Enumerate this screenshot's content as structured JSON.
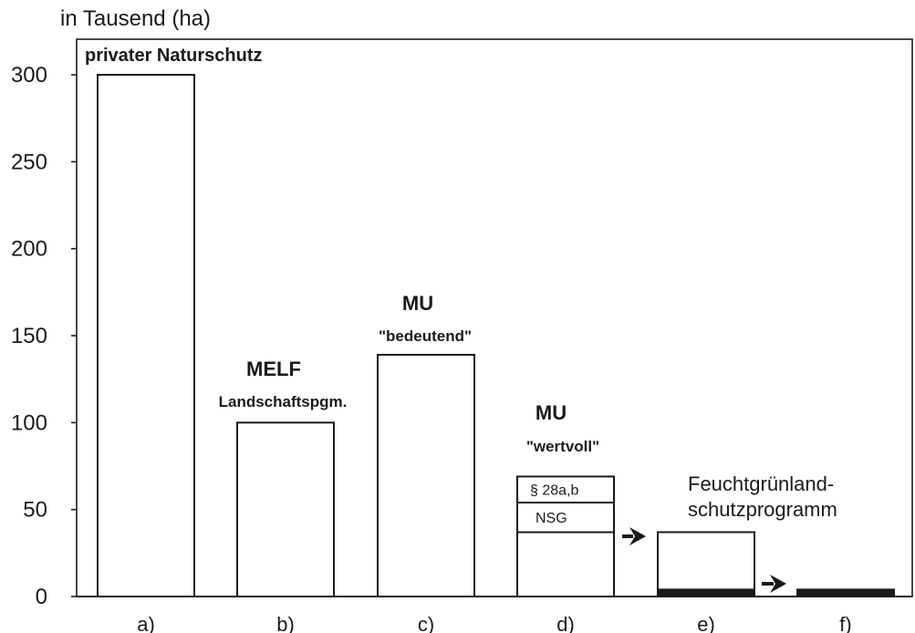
{
  "chart_data": {
    "type": "bar",
    "title": "in Tausend (ha)",
    "ylim": [
      0,
      300
    ],
    "yticks": [
      "0",
      "50",
      "100",
      "150",
      "200",
      "250",
      "300"
    ],
    "categories": [
      "a)",
      "b)",
      "c)",
      "d)",
      "e)",
      "f)"
    ],
    "values": [
      300,
      100,
      139,
      69,
      37,
      4
    ],
    "bar_labels": [
      [
        "privater Naturschutz"
      ],
      [
        "MELF",
        "Landschaftspgm."
      ],
      [
        "MU",
        "\"bedeutend\""
      ],
      [
        "MU",
        "\"wertvoll\""
      ],
      [
        "Feuchtgrünland-",
        "schutzprogramm"
      ],
      []
    ],
    "d_segments": {
      "boundaries": [
        37,
        54,
        69
      ],
      "labels": [
        "NSG",
        "§ 28a,b"
      ]
    },
    "solid_portions": {
      "e)": 4,
      "f)": 4
    },
    "arrows": [
      "d) → e)",
      "e) → f)"
    ],
    "grid": false,
    "legend": "none"
  }
}
